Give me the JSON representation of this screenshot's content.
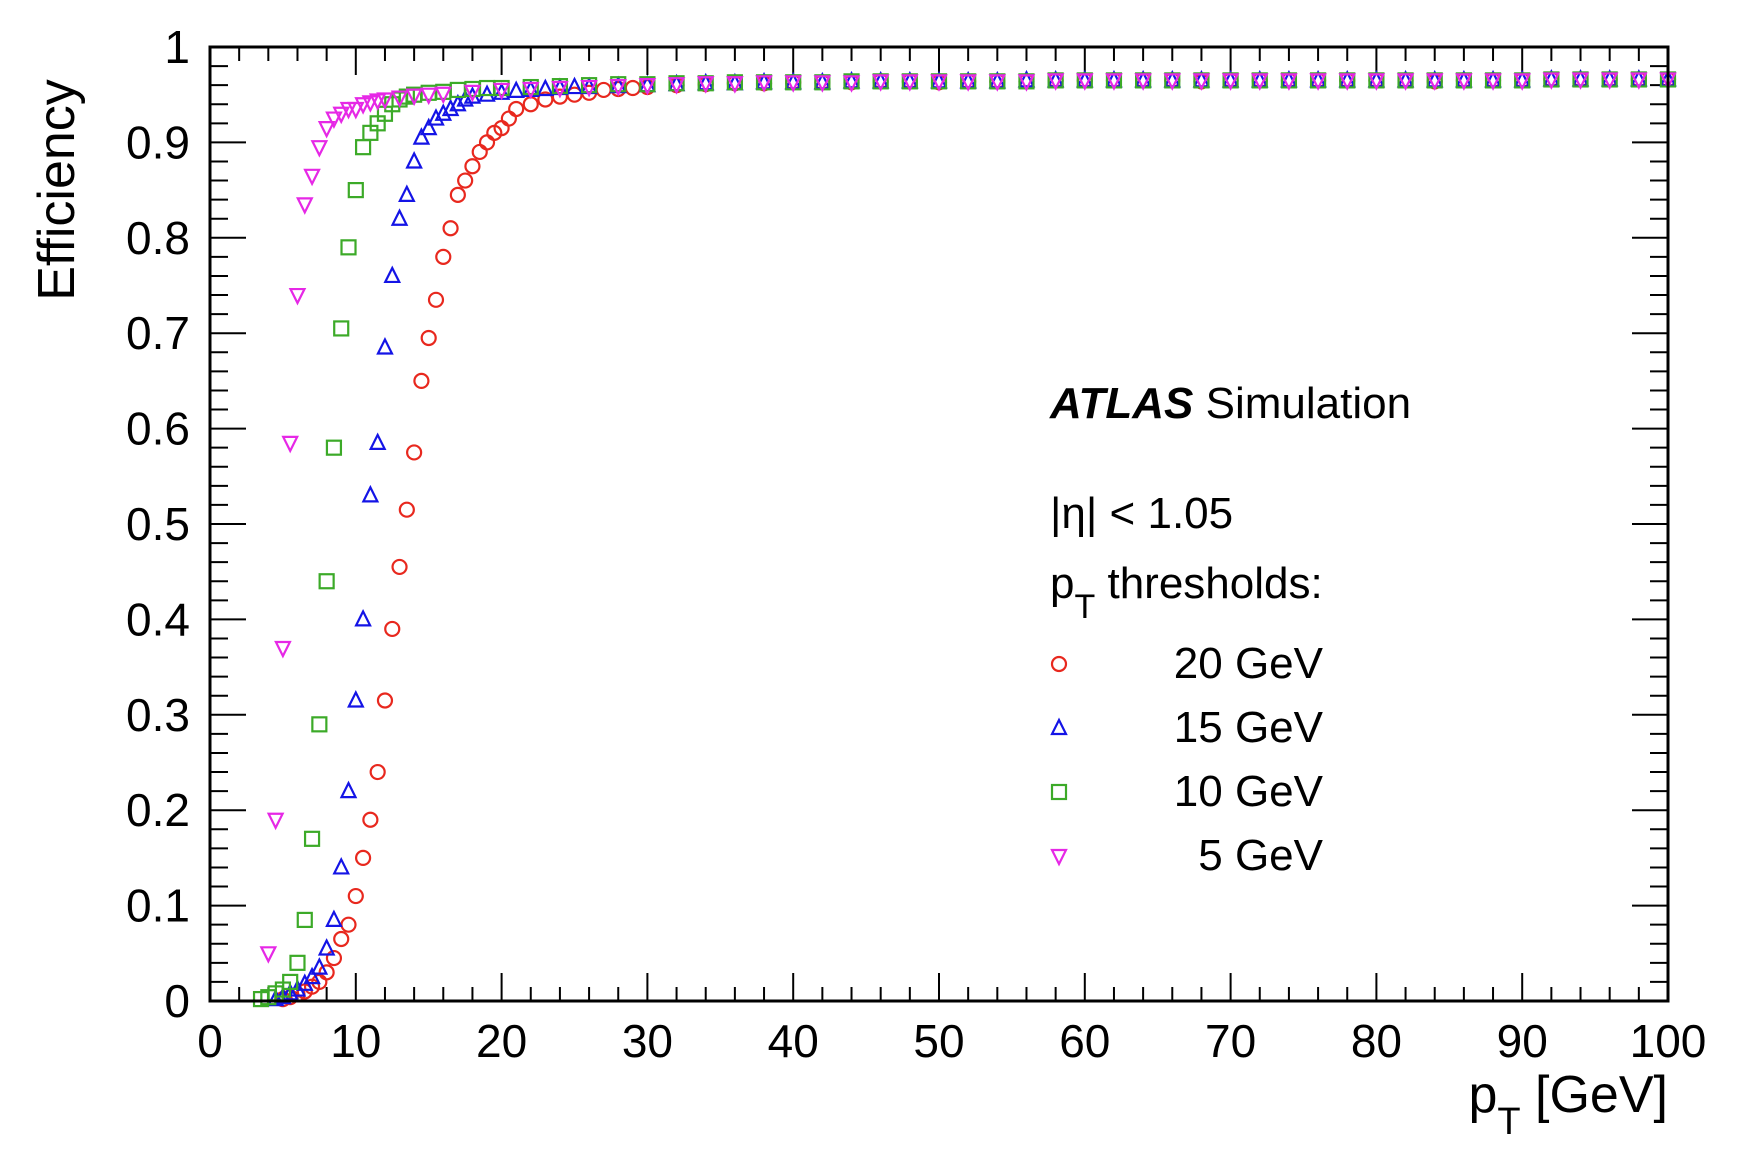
{
  "chart_data": {
    "type": "scatter",
    "xlabel": "p",
    "xlabel_sub": "T",
    "xlabel_unit": " [GeV]",
    "ylabel": "Efficiency",
    "xlim": [
      0,
      100
    ],
    "ylim": [
      0,
      1
    ],
    "x_ticks": [
      "0",
      "10",
      "20",
      "30",
      "40",
      "50",
      "60",
      "70",
      "80",
      "90",
      "100"
    ],
    "y_ticks": [
      "0",
      "0.1",
      "0.2",
      "0.3",
      "0.4",
      "0.5",
      "0.6",
      "0.7",
      "0.8",
      "0.9",
      "1"
    ],
    "grid": false,
    "legend_position": "right",
    "annotations": {
      "experiment": "ATLAS",
      "experiment_suffix": " Simulation",
      "eta_cut": "|η| < 1.05",
      "thresholds_label": "p",
      "thresholds_sub": "T",
      "thresholds_rest": " thresholds:"
    },
    "series": [
      {
        "name": "20 GeV",
        "marker": "circle",
        "color": "#e8281e",
        "points": [
          [
            5,
            0.002
          ],
          [
            5.5,
            0.004
          ],
          [
            6,
            0.007
          ],
          [
            6.5,
            0.01
          ],
          [
            7,
            0.015
          ],
          [
            7.5,
            0.02
          ],
          [
            8,
            0.03
          ],
          [
            8.5,
            0.045
          ],
          [
            9,
            0.065
          ],
          [
            9.5,
            0.08
          ],
          [
            10,
            0.11
          ],
          [
            10.5,
            0.15
          ],
          [
            11,
            0.19
          ],
          [
            11.5,
            0.24
          ],
          [
            12,
            0.315
          ],
          [
            12.5,
            0.39
          ],
          [
            13,
            0.455
          ],
          [
            13.5,
            0.515
          ],
          [
            14,
            0.575
          ],
          [
            14.5,
            0.65
          ],
          [
            15,
            0.695
          ],
          [
            15.5,
            0.735
          ],
          [
            16,
            0.78
          ],
          [
            16.5,
            0.81
          ],
          [
            17,
            0.845
          ],
          [
            17.5,
            0.86
          ],
          [
            18,
            0.875
          ],
          [
            18.5,
            0.89
          ],
          [
            19,
            0.9
          ],
          [
            19.5,
            0.91
          ],
          [
            20,
            0.915
          ],
          [
            20.5,
            0.925
          ],
          [
            21,
            0.935
          ],
          [
            22,
            0.94
          ],
          [
            23,
            0.945
          ],
          [
            24,
            0.948
          ],
          [
            25,
            0.95
          ],
          [
            26,
            0.952
          ],
          [
            27,
            0.955
          ],
          [
            28,
            0.956
          ],
          [
            29,
            0.957
          ],
          [
            30,
            0.958
          ],
          [
            32,
            0.96
          ],
          [
            34,
            0.961
          ],
          [
            36,
            0.962
          ],
          [
            38,
            0.962
          ],
          [
            40,
            0.963
          ],
          [
            42,
            0.963
          ],
          [
            44,
            0.963
          ],
          [
            46,
            0.964
          ],
          [
            48,
            0.964
          ],
          [
            50,
            0.963
          ],
          [
            52,
            0.964
          ],
          [
            54,
            0.964
          ],
          [
            56,
            0.964
          ],
          [
            58,
            0.965
          ],
          [
            60,
            0.965
          ],
          [
            62,
            0.965
          ],
          [
            64,
            0.965
          ],
          [
            66,
            0.965
          ],
          [
            68,
            0.964
          ],
          [
            70,
            0.965
          ],
          [
            72,
            0.965
          ],
          [
            74,
            0.965
          ],
          [
            76,
            0.965
          ],
          [
            78,
            0.965
          ],
          [
            80,
            0.965
          ],
          [
            82,
            0.965
          ],
          [
            84,
            0.964
          ],
          [
            86,
            0.965
          ],
          [
            88,
            0.965
          ],
          [
            90,
            0.965
          ],
          [
            92,
            0.966
          ],
          [
            94,
            0.966
          ],
          [
            96,
            0.966
          ],
          [
            98,
            0.966
          ],
          [
            100,
            0.966
          ]
        ]
      },
      {
        "name": "15 GeV",
        "marker": "triangle-up",
        "color": "#1414e6",
        "points": [
          [
            4.5,
            0.002
          ],
          [
            5,
            0.004
          ],
          [
            5.5,
            0.008
          ],
          [
            6,
            0.012
          ],
          [
            6.5,
            0.018
          ],
          [
            7,
            0.025
          ],
          [
            7.5,
            0.035
          ],
          [
            8,
            0.055
          ],
          [
            8.5,
            0.085
          ],
          [
            9,
            0.14
          ],
          [
            9.5,
            0.22
          ],
          [
            10,
            0.315
          ],
          [
            10.5,
            0.4
          ],
          [
            11,
            0.53
          ],
          [
            11.5,
            0.585
          ],
          [
            12,
            0.685
          ],
          [
            12.5,
            0.76
          ],
          [
            13,
            0.82
          ],
          [
            13.5,
            0.845
          ],
          [
            14,
            0.88
          ],
          [
            14.5,
            0.905
          ],
          [
            15,
            0.915
          ],
          [
            15.5,
            0.925
          ],
          [
            16,
            0.93
          ],
          [
            16.5,
            0.935
          ],
          [
            17,
            0.94
          ],
          [
            17.5,
            0.945
          ],
          [
            18,
            0.948
          ],
          [
            19,
            0.95
          ],
          [
            20,
            0.952
          ],
          [
            21,
            0.954
          ],
          [
            22,
            0.955
          ],
          [
            23,
            0.956
          ],
          [
            24,
            0.957
          ],
          [
            25,
            0.958
          ],
          [
            26,
            0.958
          ],
          [
            28,
            0.959
          ],
          [
            30,
            0.96
          ],
          [
            32,
            0.961
          ],
          [
            34,
            0.962
          ],
          [
            36,
            0.962
          ],
          [
            38,
            0.963
          ],
          [
            40,
            0.963
          ],
          [
            42,
            0.963
          ],
          [
            44,
            0.964
          ],
          [
            46,
            0.964
          ],
          [
            48,
            0.964
          ],
          [
            50,
            0.964
          ],
          [
            52,
            0.964
          ],
          [
            54,
            0.964
          ],
          [
            56,
            0.965
          ],
          [
            58,
            0.965
          ],
          [
            60,
            0.965
          ],
          [
            62,
            0.965
          ],
          [
            64,
            0.965
          ],
          [
            66,
            0.965
          ],
          [
            68,
            0.965
          ],
          [
            70,
            0.965
          ],
          [
            72,
            0.965
          ],
          [
            74,
            0.965
          ],
          [
            76,
            0.965
          ],
          [
            78,
            0.965
          ],
          [
            80,
            0.965
          ],
          [
            82,
            0.965
          ],
          [
            84,
            0.965
          ],
          [
            86,
            0.965
          ],
          [
            88,
            0.965
          ],
          [
            90,
            0.965
          ],
          [
            92,
            0.966
          ],
          [
            94,
            0.966
          ],
          [
            96,
            0.966
          ],
          [
            98,
            0.966
          ],
          [
            100,
            0.966
          ]
        ]
      },
      {
        "name": "10 GeV",
        "marker": "square",
        "color": "#3caa28",
        "points": [
          [
            3.5,
            0.002
          ],
          [
            4,
            0.004
          ],
          [
            4.5,
            0.008
          ],
          [
            5,
            0.012
          ],
          [
            5.5,
            0.02
          ],
          [
            6,
            0.04
          ],
          [
            6.5,
            0.085
          ],
          [
            7,
            0.17
          ],
          [
            7.5,
            0.29
          ],
          [
            8,
            0.44
          ],
          [
            8.5,
            0.58
          ],
          [
            9,
            0.705
          ],
          [
            9.5,
            0.79
          ],
          [
            10,
            0.85
          ],
          [
            10.5,
            0.895
          ],
          [
            11,
            0.91
          ],
          [
            11.5,
            0.92
          ],
          [
            12,
            0.93
          ],
          [
            12.5,
            0.94
          ],
          [
            13,
            0.945
          ],
          [
            13.5,
            0.948
          ],
          [
            14,
            0.95
          ],
          [
            15,
            0.952
          ],
          [
            16,
            0.953
          ],
          [
            17,
            0.955
          ],
          [
            18,
            0.956
          ],
          [
            19,
            0.957
          ],
          [
            20,
            0.957
          ],
          [
            22,
            0.958
          ],
          [
            24,
            0.959
          ],
          [
            26,
            0.96
          ],
          [
            28,
            0.961
          ],
          [
            30,
            0.961
          ],
          [
            32,
            0.962
          ],
          [
            34,
            0.962
          ],
          [
            36,
            0.963
          ],
          [
            38,
            0.963
          ],
          [
            40,
            0.963
          ],
          [
            42,
            0.963
          ],
          [
            44,
            0.964
          ],
          [
            46,
            0.964
          ],
          [
            48,
            0.964
          ],
          [
            50,
            0.964
          ],
          [
            52,
            0.964
          ],
          [
            54,
            0.964
          ],
          [
            56,
            0.964
          ],
          [
            58,
            0.965
          ],
          [
            60,
            0.965
          ],
          [
            62,
            0.965
          ],
          [
            64,
            0.965
          ],
          [
            66,
            0.965
          ],
          [
            68,
            0.965
          ],
          [
            70,
            0.965
          ],
          [
            72,
            0.965
          ],
          [
            74,
            0.965
          ],
          [
            76,
            0.965
          ],
          [
            78,
            0.965
          ],
          [
            80,
            0.965
          ],
          [
            82,
            0.965
          ],
          [
            84,
            0.965
          ],
          [
            86,
            0.965
          ],
          [
            88,
            0.965
          ],
          [
            90,
            0.965
          ],
          [
            92,
            0.966
          ],
          [
            94,
            0.966
          ],
          [
            96,
            0.966
          ],
          [
            98,
            0.966
          ],
          [
            100,
            0.966
          ]
        ]
      },
      {
        "name": "5 GeV",
        "marker": "triangle-down",
        "color": "#e628e6",
        "points": [
          [
            4,
            0.05
          ],
          [
            4.5,
            0.19
          ],
          [
            5,
            0.37
          ],
          [
            5.5,
            0.585
          ],
          [
            6,
            0.74
          ],
          [
            6.5,
            0.835
          ],
          [
            7,
            0.865
          ],
          [
            7.5,
            0.895
          ],
          [
            8,
            0.915
          ],
          [
            8.5,
            0.925
          ],
          [
            9,
            0.93
          ],
          [
            9.5,
            0.935
          ],
          [
            10,
            0.935
          ],
          [
            10.5,
            0.94
          ],
          [
            11,
            0.942
          ],
          [
            11.5,
            0.944
          ],
          [
            12,
            0.945
          ],
          [
            13,
            0.947
          ],
          [
            14,
            0.949
          ],
          [
            15,
            0.95
          ],
          [
            16,
            0.951
          ],
          [
            18,
            0.953
          ],
          [
            20,
            0.955
          ],
          [
            22,
            0.956
          ],
          [
            24,
            0.957
          ],
          [
            26,
            0.958
          ],
          [
            28,
            0.959
          ],
          [
            30,
            0.96
          ],
          [
            32,
            0.961
          ],
          [
            34,
            0.962
          ],
          [
            36,
            0.962
          ],
          [
            38,
            0.963
          ],
          [
            40,
            0.963
          ],
          [
            42,
            0.963
          ],
          [
            44,
            0.963
          ],
          [
            46,
            0.964
          ],
          [
            48,
            0.964
          ],
          [
            50,
            0.964
          ],
          [
            52,
            0.964
          ],
          [
            54,
            0.964
          ],
          [
            56,
            0.964
          ],
          [
            58,
            0.965
          ],
          [
            60,
            0.965
          ],
          [
            62,
            0.965
          ],
          [
            64,
            0.965
          ],
          [
            66,
            0.965
          ],
          [
            68,
            0.965
          ],
          [
            70,
            0.965
          ],
          [
            72,
            0.965
          ],
          [
            74,
            0.965
          ],
          [
            76,
            0.965
          ],
          [
            78,
            0.965
          ],
          [
            80,
            0.965
          ],
          [
            82,
            0.965
          ],
          [
            84,
            0.965
          ],
          [
            86,
            0.965
          ],
          [
            88,
            0.965
          ],
          [
            90,
            0.965
          ],
          [
            92,
            0.966
          ],
          [
            94,
            0.966
          ],
          [
            96,
            0.966
          ],
          [
            98,
            0.966
          ],
          [
            100,
            0.966
          ]
        ]
      }
    ]
  }
}
